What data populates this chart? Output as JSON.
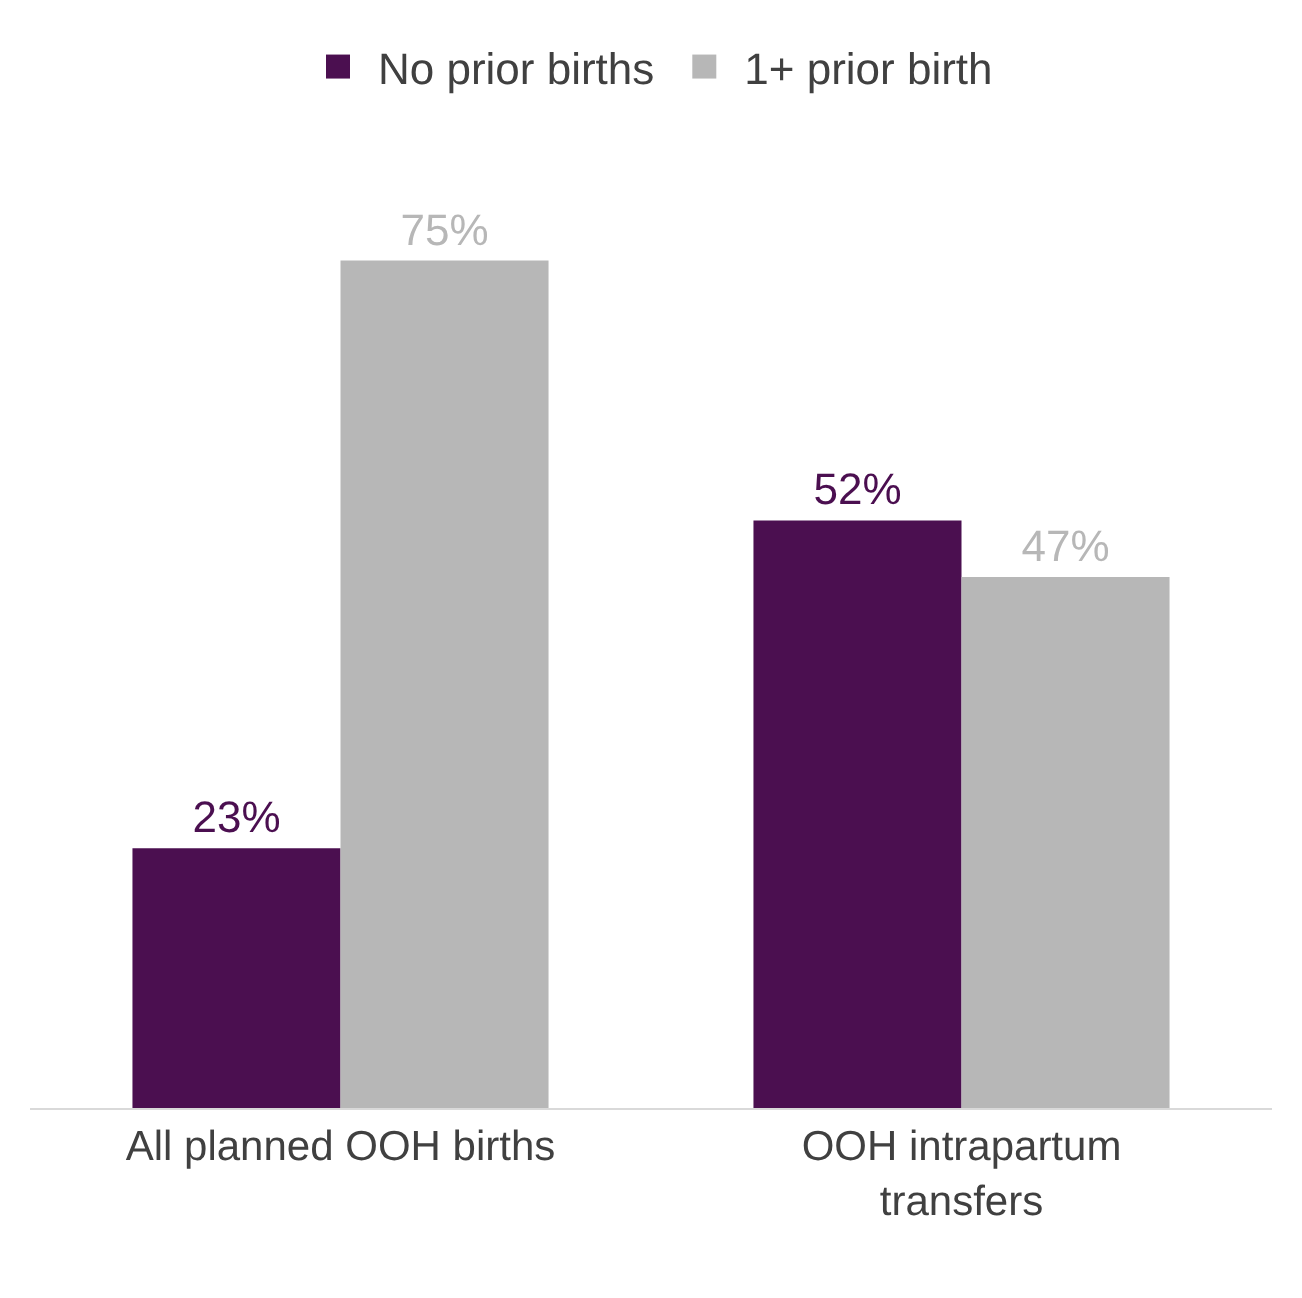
{
  "chart_data": {
    "type": "bar",
    "categories": [
      "All planned OOH births",
      "OOH intrapartum transfers"
    ],
    "series": [
      {
        "name": "No prior births",
        "color": "#4b0f50",
        "values": [
          23,
          52
        ],
        "value_labels": [
          "23%",
          "52%"
        ]
      },
      {
        "name": "1+ prior birth",
        "color": "#b7b7b7",
        "values": [
          75,
          47
        ],
        "value_labels": [
          "75%",
          "47%"
        ]
      }
    ],
    "tick_labels": "x",
    "legend": "top"
  }
}
